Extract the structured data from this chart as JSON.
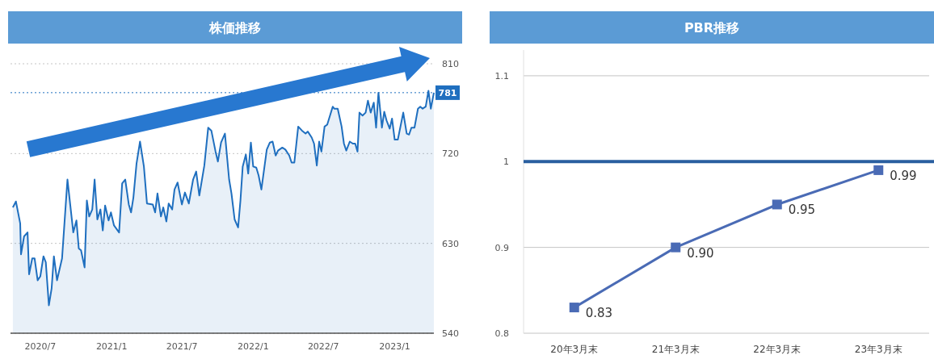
{
  "chart_data": [
    {
      "type": "area",
      "title": "株価推移",
      "color": "#1f6fbf",
      "x": [
        "2020-04-21",
        "2020-04-29",
        "2020-05-10",
        "2020-05-12",
        "2020-05-20",
        "2020-05-29",
        "2020-06-02",
        "2020-06-10",
        "2020-06-16",
        "2020-06-24",
        "2020-07-01",
        "2020-07-09",
        "2020-07-15",
        "2020-07-23",
        "2020-07-30",
        "2020-08-05",
        "2020-08-13",
        "2020-08-26",
        "2020-09-09",
        "2020-09-24",
        "2020-10-02",
        "2020-10-08",
        "2020-10-14",
        "2020-10-23",
        "2020-10-29",
        "2020-11-04",
        "2020-11-12",
        "2020-11-18",
        "2020-11-25",
        "2020-12-03",
        "2020-12-09",
        "2020-12-15",
        "2020-12-24",
        "2020-12-30",
        "2021-01-07",
        "2021-01-20",
        "2021-01-28",
        "2021-02-05",
        "2021-02-14",
        "2021-02-20",
        "2021-02-26",
        "2021-03-06",
        "2021-03-15",
        "2021-03-25",
        "2021-04-02",
        "2021-04-17",
        "2021-04-23",
        "2021-04-29",
        "2021-05-08",
        "2021-05-14",
        "2021-05-22",
        "2021-05-28",
        "2021-06-06",
        "2021-06-12",
        "2021-06-20",
        "2021-07-01",
        "2021-07-09",
        "2021-07-19",
        "2021-07-30",
        "2021-08-07",
        "2021-08-15",
        "2021-08-28",
        "2021-09-07",
        "2021-09-15",
        "2021-09-26",
        "2021-10-02",
        "2021-10-10",
        "2021-10-20",
        "2021-10-31",
        "2021-11-06",
        "2021-11-14",
        "2021-11-23",
        "2021-11-29",
        "2021-12-05",
        "2021-12-13",
        "2021-12-19",
        "2021-12-26",
        "2022-01-01",
        "2022-01-09",
        "2022-01-15",
        "2022-01-22",
        "2022-02-05",
        "2022-02-13",
        "2022-02-20",
        "2022-02-28",
        "2022-03-06",
        "2022-03-17",
        "2022-03-25",
        "2022-04-04",
        "2022-04-10",
        "2022-04-17",
        "2022-04-27",
        "2022-05-07",
        "2022-05-16",
        "2022-05-22",
        "2022-06-01",
        "2022-06-07",
        "2022-06-14",
        "2022-06-20",
        "2022-06-26",
        "2022-07-04",
        "2022-07-11",
        "2022-07-25",
        "2022-07-29",
        "2022-08-07",
        "2022-08-17",
        "2022-08-23",
        "2022-08-29",
        "2022-09-07",
        "2022-09-15",
        "2022-09-21",
        "2022-09-27",
        "2022-10-02",
        "2022-10-10",
        "2022-10-18",
        "2022-10-24",
        "2022-10-31",
        "2022-11-08",
        "2022-11-14",
        "2022-11-20",
        "2022-11-29",
        "2022-12-05",
        "2022-12-11",
        "2022-12-19",
        "2022-12-25",
        "2023-01-01",
        "2023-01-09",
        "2023-01-23",
        "2023-02-01",
        "2023-02-07",
        "2023-02-13",
        "2023-02-21",
        "2023-03-02",
        "2023-03-08",
        "2023-03-14",
        "2023-03-22",
        "2023-03-29",
        "2023-04-04",
        "2023-04-12"
      ],
      "values": [
        666,
        672,
        650,
        619,
        637,
        641,
        599,
        615,
        615,
        593,
        597,
        617,
        611,
        568,
        585,
        617,
        593,
        615,
        694,
        641,
        653,
        625,
        623,
        606,
        673,
        657,
        664,
        694,
        654,
        664,
        643,
        668,
        653,
        661,
        648,
        641,
        690,
        694,
        669,
        661,
        676,
        710,
        732,
        707,
        670,
        669,
        661,
        680,
        657,
        666,
        652,
        670,
        664,
        684,
        691,
        669,
        681,
        670,
        694,
        702,
        678,
        708,
        746,
        743,
        722,
        712,
        731,
        740,
        694,
        680,
        654,
        646,
        673,
        707,
        719,
        700,
        731,
        707,
        706,
        698,
        684,
        724,
        731,
        732,
        718,
        723,
        726,
        724,
        718,
        711,
        711,
        747,
        743,
        740,
        742,
        736,
        730,
        708,
        732,
        722,
        747,
        749,
        767,
        765,
        765,
        747,
        730,
        723,
        732,
        730,
        730,
        722,
        761,
        758,
        761,
        773,
        761,
        771,
        746,
        781,
        746,
        762,
        753,
        745,
        755,
        734,
        734,
        761,
        740,
        739,
        746,
        746,
        765,
        767,
        765,
        767,
        783,
        765,
        781
      ],
      "xlim": [
        "2020-04-15",
        "2023-04-12"
      ],
      "xticks": [
        {
          "value": "2020-07-01",
          "label": "2020/7"
        },
        {
          "value": "2021-01-01",
          "label": "2021/1"
        },
        {
          "value": "2021-07-01",
          "label": "2021/7"
        },
        {
          "value": "2022-01-01",
          "label": "2022/1"
        },
        {
          "value": "2022-07-01",
          "label": "2022/7"
        },
        {
          "value": "2023-01-01",
          "label": "2023/1"
        }
      ],
      "ylim": [
        540,
        810
      ],
      "yticks": [
        540,
        630,
        720,
        810
      ],
      "grid": "y",
      "ref_lines": [
        {
          "axis": "y",
          "value": 781,
          "label": "781",
          "color": "#1f6fbf",
          "line_style": "dotted"
        }
      ]
    },
    {
      "type": "line",
      "title": "PBR推移",
      "categories": [
        "20年3月末",
        "21年3月末",
        "22年3月末",
        "23年3月末"
      ],
      "values": [
        0.83,
        0.9,
        0.95,
        0.99
      ],
      "value_labels": [
        "0.83",
        "0.90",
        "0.95",
        "0.99"
      ],
      "color": "#4a6bb5",
      "marker": "square",
      "ylim": [
        0.8,
        1.13
      ],
      "yticks": [
        0.8,
        0.9,
        1,
        1.1
      ],
      "grid": "y",
      "ref_lines": [
        {
          "axis": "y",
          "value": 1,
          "color": "#2a5fa0",
          "line_style": "solid"
        }
      ]
    }
  ]
}
